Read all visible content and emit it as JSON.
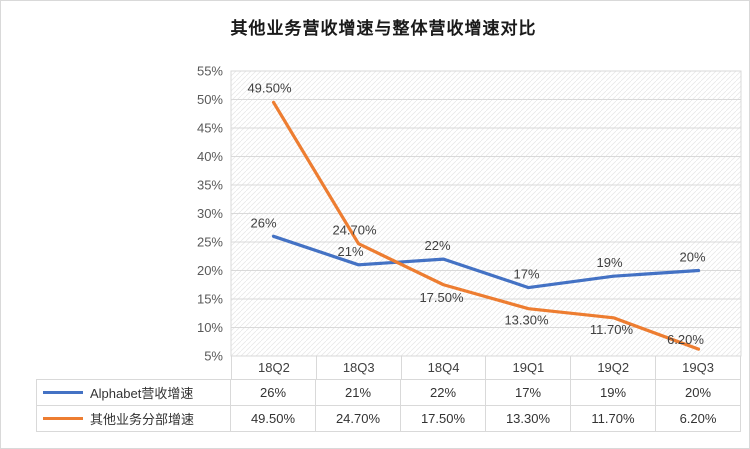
{
  "chart_data": {
    "type": "line",
    "title": "其他业务营收增速与整体营收增速对比",
    "categories": [
      "18Q2",
      "18Q3",
      "18Q4",
      "19Q1",
      "19Q2",
      "19Q3"
    ],
    "series": [
      {
        "name": "Alphabet营收增速",
        "values": [
          26,
          21,
          22,
          17,
          19,
          20
        ],
        "labels": [
          "26%",
          "21%",
          "22%",
          "17%",
          "19%",
          "20%"
        ],
        "color": "#4472C4"
      },
      {
        "name": "其他业务分部增速",
        "values": [
          49.5,
          24.7,
          17.5,
          13.3,
          11.7,
          6.2
        ],
        "labels": [
          "49.50%",
          "24.70%",
          "17.50%",
          "13.30%",
          "11.70%",
          "6.20%"
        ],
        "color": "#ED7D31"
      }
    ],
    "xlabel": "",
    "ylabel": "",
    "ylim": [
      5,
      55
    ],
    "ytick_step": 5,
    "ytick_labels": [
      "5%",
      "10%",
      "15%",
      "20%",
      "25%",
      "30%",
      "35%",
      "40%",
      "45%",
      "50%",
      "55%"
    ],
    "grid": true,
    "legend_position": "table-left",
    "plot_background": "diagonal-hatch",
    "colors": {
      "grid": "#D9D9D9",
      "hatch": "#E8E8E8",
      "axis_text": "#595959",
      "label_text": "#404040",
      "border": "#D9D9D9"
    }
  }
}
